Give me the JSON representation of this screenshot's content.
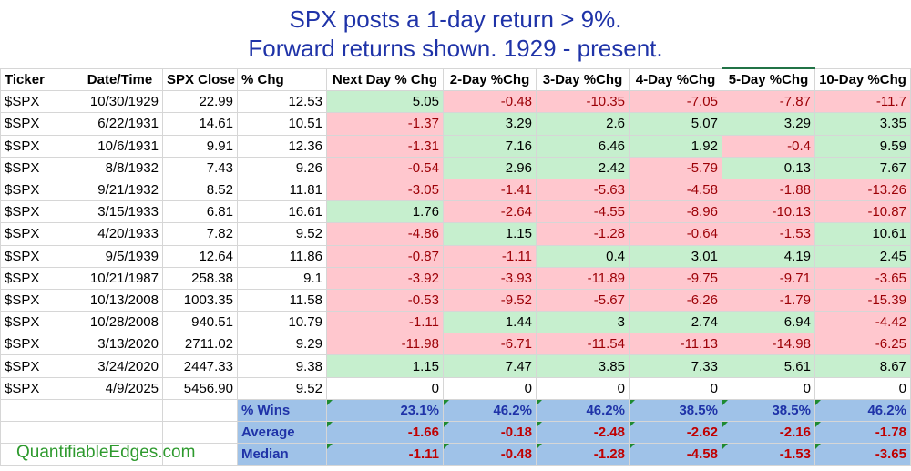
{
  "title": {
    "line1": "SPX posts a 1-day return > 9%.",
    "line2": "Forward returns shown. 1929 - present."
  },
  "headers": [
    "Ticker",
    "Date/Time",
    "SPX Close",
    "% Chg",
    "Next Day % Chg",
    "2-Day %Chg",
    "3-Day %Chg",
    "4-Day %Chg",
    "5-Day %Chg",
    "10-Day %Chg"
  ],
  "rows": [
    {
      "ticker": "$SPX",
      "date": "10/30/1929",
      "close": "22.99",
      "chg": "12.53",
      "returns": [
        "5.05",
        "-0.48",
        "-10.35",
        "-7.05",
        "-7.87",
        "-11.7"
      ]
    },
    {
      "ticker": "$SPX",
      "date": "6/22/1931",
      "close": "14.61",
      "chg": "10.51",
      "returns": [
        "-1.37",
        "3.29",
        "2.6",
        "5.07",
        "3.29",
        "3.35"
      ]
    },
    {
      "ticker": "$SPX",
      "date": "10/6/1931",
      "close": "9.91",
      "chg": "12.36",
      "returns": [
        "-1.31",
        "7.16",
        "6.46",
        "1.92",
        "-0.4",
        "9.59"
      ]
    },
    {
      "ticker": "$SPX",
      "date": "8/8/1932",
      "close": "7.43",
      "chg": "9.26",
      "returns": [
        "-0.54",
        "2.96",
        "2.42",
        "-5.79",
        "0.13",
        "7.67"
      ]
    },
    {
      "ticker": "$SPX",
      "date": "9/21/1932",
      "close": "8.52",
      "chg": "11.81",
      "returns": [
        "-3.05",
        "-1.41",
        "-5.63",
        "-4.58",
        "-1.88",
        "-13.26"
      ]
    },
    {
      "ticker": "$SPX",
      "date": "3/15/1933",
      "close": "6.81",
      "chg": "16.61",
      "returns": [
        "1.76",
        "-2.64",
        "-4.55",
        "-8.96",
        "-10.13",
        "-10.87"
      ]
    },
    {
      "ticker": "$SPX",
      "date": "4/20/1933",
      "close": "7.82",
      "chg": "9.52",
      "returns": [
        "-4.86",
        "1.15",
        "-1.28",
        "-0.64",
        "-1.53",
        "10.61"
      ]
    },
    {
      "ticker": "$SPX",
      "date": "9/5/1939",
      "close": "12.64",
      "chg": "11.86",
      "returns": [
        "-0.87",
        "-1.11",
        "0.4",
        "3.01",
        "4.19",
        "2.45"
      ]
    },
    {
      "ticker": "$SPX",
      "date": "10/21/1987",
      "close": "258.38",
      "chg": "9.1",
      "returns": [
        "-3.92",
        "-3.93",
        "-11.89",
        "-9.75",
        "-9.71",
        "-3.65"
      ]
    },
    {
      "ticker": "$SPX",
      "date": "10/13/2008",
      "close": "1003.35",
      "chg": "11.58",
      "returns": [
        "-0.53",
        "-9.52",
        "-5.67",
        "-6.26",
        "-1.79",
        "-15.39"
      ]
    },
    {
      "ticker": "$SPX",
      "date": "10/28/2008",
      "close": "940.51",
      "chg": "10.79",
      "returns": [
        "-1.11",
        "1.44",
        "3",
        "2.74",
        "6.94",
        "-4.42"
      ]
    },
    {
      "ticker": "$SPX",
      "date": "3/13/2020",
      "close": "2711.02",
      "chg": "9.29",
      "returns": [
        "-11.98",
        "-6.71",
        "-11.54",
        "-11.13",
        "-14.98",
        "-6.25"
      ]
    },
    {
      "ticker": "$SPX",
      "date": "3/24/2020",
      "close": "2447.33",
      "chg": "9.38",
      "returns": [
        "1.15",
        "7.47",
        "3.85",
        "7.33",
        "5.61",
        "8.67"
      ]
    },
    {
      "ticker": "$SPX",
      "date": "4/9/2025",
      "close": "5456.90",
      "chg": "9.52",
      "returns": [
        "0",
        "0",
        "0",
        "0",
        "0",
        "0"
      ]
    }
  ],
  "summary": [
    {
      "label": "% Wins",
      "values": [
        "23.1%",
        "46.2%",
        "46.2%",
        "38.5%",
        "38.5%",
        "46.2%"
      ],
      "style": "bluetext"
    },
    {
      "label": "Average",
      "values": [
        "-1.66",
        "-0.18",
        "-2.48",
        "-2.62",
        "-2.16",
        "-1.78"
      ],
      "style": "negtext"
    },
    {
      "label": "Median",
      "values": [
        "-1.11",
        "-0.48",
        "-1.28",
        "-4.58",
        "-1.53",
        "-3.65"
      ],
      "style": "negtext"
    }
  ],
  "logo": "QuantifiableEdges.com",
  "colors": {
    "title": "#1f33a8",
    "positive_fill": "#c6efce",
    "negative_fill": "#ffc7ce",
    "negative_text": "#9c0006",
    "summary_fill": "#9fc2e8",
    "logo": "#2e9a2e"
  }
}
